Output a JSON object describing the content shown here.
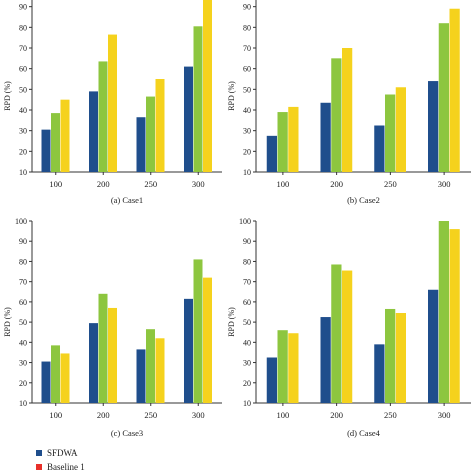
{
  "colors": {
    "sfdwa": "#1f4e8c",
    "baseline1": "#8dc63f",
    "baseline2": "#f5d21d",
    "baseline1_legend": "#e8302a",
    "axis": "#333333"
  },
  "legend": {
    "items": [
      {
        "label": "SFDWA",
        "color": "#1f4e8c"
      },
      {
        "label": "Baseline 1",
        "color": "#e8302a"
      }
    ]
  },
  "chart_data": [
    {
      "type": "bar",
      "caption": "(a) Case1",
      "ylabel": "RPD (%)",
      "ylim": [
        10,
        100
      ],
      "yticks": [
        10,
        20,
        30,
        40,
        50,
        60,
        70,
        80,
        90
      ],
      "categories": [
        "100",
        "200",
        "250",
        "300"
      ],
      "series": [
        {
          "key": "sfdwa",
          "values": [
            30.5,
            49,
            36.5,
            61
          ]
        },
        {
          "key": "baseline1",
          "values": [
            38.5,
            63.5,
            46.5,
            80.5
          ]
        },
        {
          "key": "baseline2",
          "values": [
            45,
            76.5,
            55,
            96
          ]
        }
      ],
      "grid": false
    },
    {
      "type": "bar",
      "caption": "(b) Case2",
      "ylabel": "RPD (%)",
      "ylim": [
        10,
        100
      ],
      "yticks": [
        10,
        20,
        30,
        40,
        50,
        60,
        70,
        80,
        90
      ],
      "categories": [
        "100",
        "200",
        "250",
        "300"
      ],
      "series": [
        {
          "key": "sfdwa",
          "values": [
            27.5,
            43.5,
            32.5,
            54
          ]
        },
        {
          "key": "baseline1",
          "values": [
            39,
            65,
            47.5,
            82
          ]
        },
        {
          "key": "baseline2",
          "values": [
            41.5,
            70,
            51,
            89
          ]
        }
      ],
      "grid": false
    },
    {
      "type": "bar",
      "caption": "(c) Case3",
      "ylabel": "RPD (%)",
      "ylim": [
        10,
        100
      ],
      "yticks": [
        10,
        20,
        30,
        40,
        50,
        60,
        70,
        80,
        90,
        100
      ],
      "categories": [
        "100",
        "200",
        "250",
        "300"
      ],
      "series": [
        {
          "key": "sfdwa",
          "values": [
            30.5,
            49.5,
            36.5,
            61.5
          ]
        },
        {
          "key": "baseline1",
          "values": [
            38.5,
            64,
            46.5,
            81
          ]
        },
        {
          "key": "baseline2",
          "values": [
            34.5,
            57,
            42,
            72
          ]
        }
      ],
      "grid": false
    },
    {
      "type": "bar",
      "caption": "(d) Case4",
      "ylabel": "RPD (%)",
      "ylim": [
        10,
        100
      ],
      "yticks": [
        10,
        20,
        30,
        40,
        50,
        60,
        70,
        80,
        90,
        100
      ],
      "categories": [
        "100",
        "200",
        "250",
        "300"
      ],
      "series": [
        {
          "key": "sfdwa",
          "values": [
            32.5,
            52.5,
            39,
            66
          ]
        },
        {
          "key": "baseline1",
          "values": [
            46,
            78.5,
            56.5,
            100
          ]
        },
        {
          "key": "baseline2",
          "values": [
            44.5,
            75.5,
            54.5,
            96
          ]
        }
      ],
      "grid": false
    }
  ]
}
